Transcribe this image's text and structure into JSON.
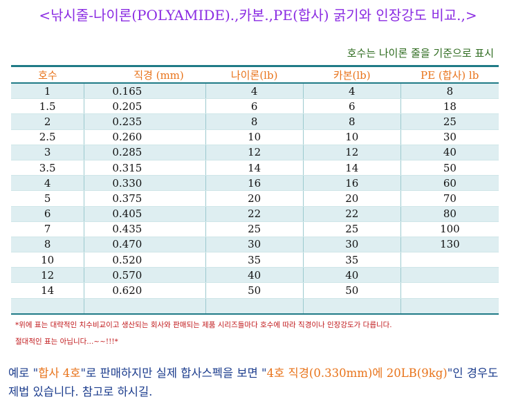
{
  "title": "<낚시줄-나이론(POLYAMIDE).,카본.,PE(합사) 굵기와 인장강도 비교.,>",
  "subtitle": "호수는 나이론 줄을 기준으로 표시",
  "table": {
    "headers": [
      "호수",
      "직경 (mm)",
      "나이론(lb)",
      "카본(lb)",
      "PE (합사) lb"
    ],
    "rows": [
      [
        "1",
        "0.165",
        "4",
        "4",
        "8"
      ],
      [
        "1.5",
        "0.205",
        "6",
        "6",
        "18"
      ],
      [
        "2",
        "0.235",
        "8",
        "8",
        "25"
      ],
      [
        "2.5",
        "0.260",
        "10",
        "10",
        "30"
      ],
      [
        "3",
        "0.285",
        "12",
        "12",
        "40"
      ],
      [
        "3.5",
        "0.315",
        "14",
        "14",
        "50"
      ],
      [
        "4",
        "0.330",
        "16",
        "16",
        "60"
      ],
      [
        "5",
        "0.375",
        "20",
        "20",
        "70"
      ],
      [
        "6",
        "0.405",
        "22",
        "22",
        "80"
      ],
      [
        "7",
        "0.435",
        "25",
        "25",
        "100"
      ],
      [
        "8",
        "0.470",
        "30",
        "30",
        "130"
      ],
      [
        "10",
        "0.520",
        "35",
        "35",
        ""
      ],
      [
        "12",
        "0.570",
        "40",
        "40",
        ""
      ],
      [
        "14",
        "0.620",
        "50",
        "50",
        ""
      ],
      [
        "",
        "",
        "",
        "",
        ""
      ]
    ]
  },
  "notes": {
    "line1": "*위에 표는 대략적인 치수비교이고 생산되는 회사와 판매되는 제품 시리즈들마다 호수에 따라 직경이나 인장강도가 다릅니다.",
    "line2": "절대적인 표는 아닙니다...~~!!!*"
  },
  "example": {
    "p1": "예로 \"",
    "h1": "합사 4호",
    "p2": "\"로 판매하지만 실제 합사스펙을 보면 \"",
    "h2": "4호 직경(0.330mm)에 20LB(9kg)",
    "p3": "\"인 경우도 제법 있습니다. 참고로 하시길."
  }
}
